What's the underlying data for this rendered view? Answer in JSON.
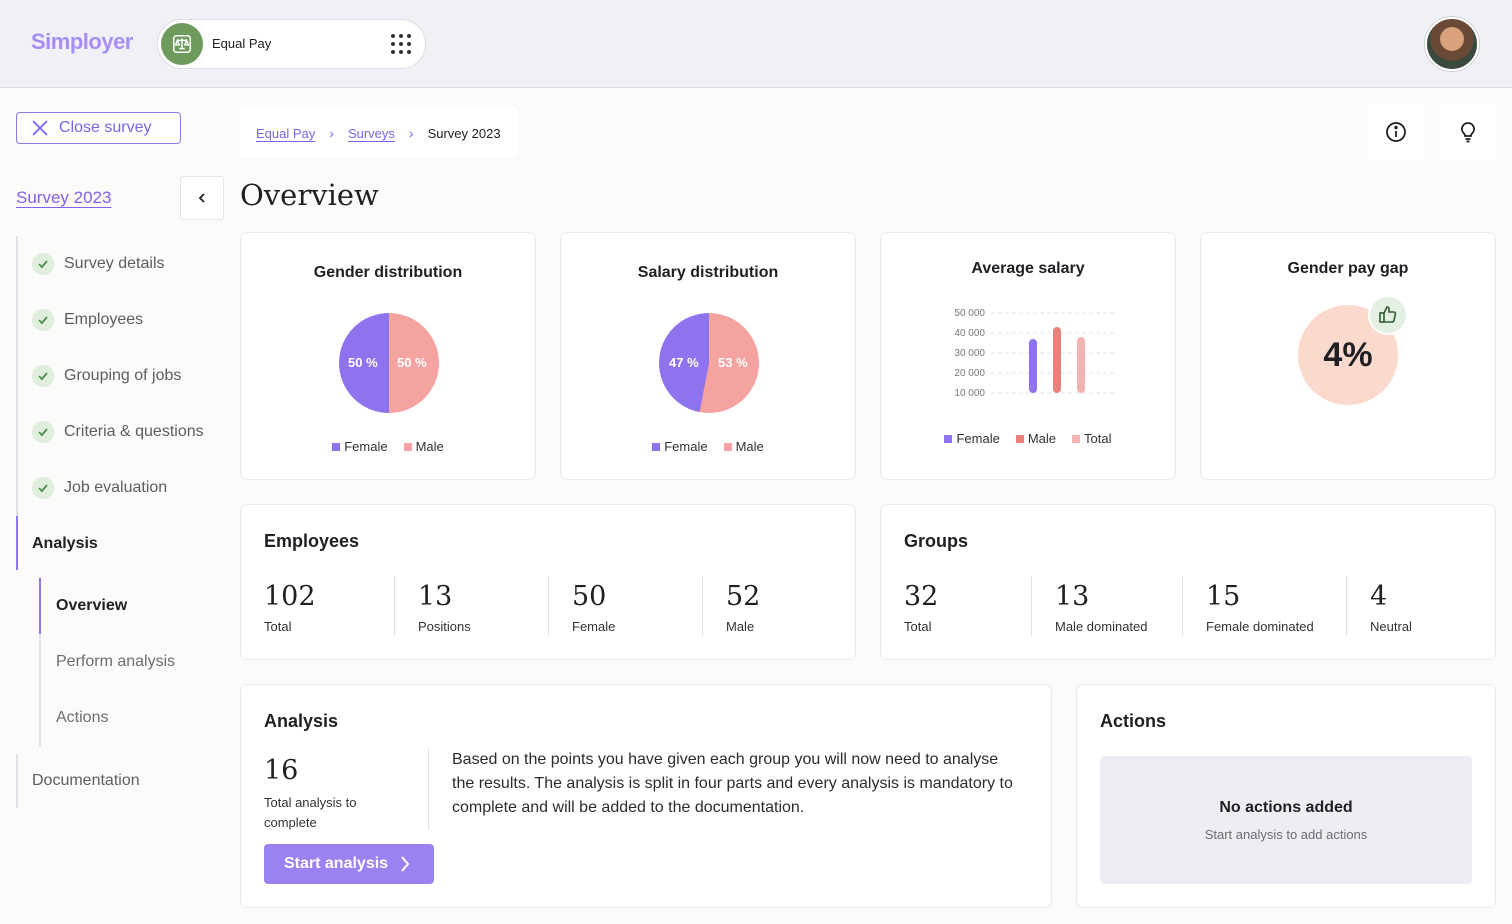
{
  "header": {
    "logo": "Simployer",
    "app_name": "Equal Pay",
    "app_icon": "scale-icon",
    "menu_icon": "grid-menu-icon"
  },
  "sidebar": {
    "close_label": "Close survey",
    "survey_title": "Survey 2023",
    "items": [
      {
        "label": "Survey details",
        "done": true
      },
      {
        "label": "Employees",
        "done": true
      },
      {
        "label": "Grouping of jobs",
        "done": true
      },
      {
        "label": "Criteria & questions",
        "done": true
      },
      {
        "label": "Job evaluation",
        "done": true
      }
    ],
    "analysis_label": "Analysis",
    "sub_items": [
      "Overview",
      "Perform analysis",
      "Actions"
    ],
    "documentation_label": "Documentation"
  },
  "breadcrumb": {
    "items": [
      "Equal Pay",
      "Surveys",
      "Survey 2023"
    ]
  },
  "page_title": "Overview",
  "colors": {
    "accent": "#9b82f2",
    "female": "#8f72ee",
    "male": "#f5a3a0",
    "total": "#f3b3b2",
    "gap_circle": "#fbd9cc"
  },
  "cards": {
    "gender": {
      "title": "Gender distribution",
      "female_label": "50 %",
      "male_label": "50 %",
      "legend": [
        "Female",
        "Male"
      ]
    },
    "salary": {
      "title": "Salary distribution",
      "female_label": "47 %",
      "male_label": "53 %",
      "legend": [
        "Female",
        "Male"
      ]
    },
    "average": {
      "title": "Average salary",
      "legend": [
        "Female",
        "Male",
        "Total"
      ]
    },
    "gap": {
      "title": "Gender pay gap",
      "value": "4%",
      "icon": "thumbs-up-icon"
    }
  },
  "chart_data": [
    {
      "type": "pie",
      "title": "Gender distribution",
      "categories": [
        "Female",
        "Male"
      ],
      "values": [
        50,
        50
      ]
    },
    {
      "type": "pie",
      "title": "Salary distribution",
      "categories": [
        "Female",
        "Male"
      ],
      "values": [
        47,
        53
      ]
    },
    {
      "type": "bar",
      "title": "Average salary",
      "categories": [
        "Female",
        "Male",
        "Total"
      ],
      "values": [
        37000,
        43000,
        38000
      ],
      "ylim": [
        10000,
        50000
      ],
      "yticks": [
        "50 000",
        "40 000",
        "30 000",
        "20 000",
        "10 000"
      ],
      "grid": true,
      "legend": "bottom"
    }
  ],
  "employees": {
    "title": "Employees",
    "stats": [
      {
        "num": "102",
        "label": "Total"
      },
      {
        "num": "13",
        "label": "Positions"
      },
      {
        "num": "50",
        "label": "Female"
      },
      {
        "num": "52",
        "label": "Male"
      }
    ]
  },
  "groups": {
    "title": "Groups",
    "stats": [
      {
        "num": "32",
        "label": "Total"
      },
      {
        "num": "13",
        "label": "Male dominated"
      },
      {
        "num": "15",
        "label": "Female dominated"
      },
      {
        "num": "4",
        "label": "Neutral"
      }
    ]
  },
  "analysis": {
    "title": "Analysis",
    "num": "16",
    "num_label": "Total analysis to complete",
    "text": "Based on the points you have given each group you will now need to analyse the results. The analysis is split in four parts and every analysis is mandatory to complete and will be added to the documentation.",
    "button": "Start analysis"
  },
  "actions": {
    "title": "Actions",
    "empty_title": "No actions added",
    "empty_sub": "Start analysis to add actions"
  }
}
